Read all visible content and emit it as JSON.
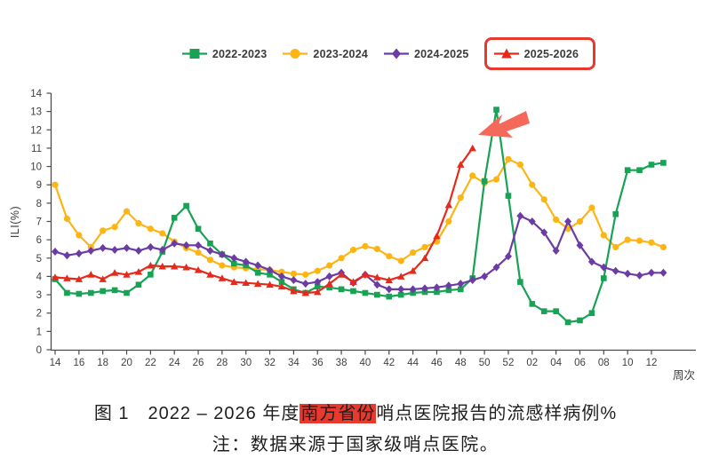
{
  "figure": {
    "caption": {
      "prefix": "图 1　2022 – 2026 年度",
      "highlight": "南方省份",
      "suffix": "哨点医院报告的流感样病例%",
      "highlight_bg": "#e8392e"
    },
    "note": "注：数据来源于国家级哨点医院。",
    "legend_highlight": {
      "item": "2025-2026",
      "box_color": "#e8392e"
    }
  },
  "chart_data": {
    "type": "line",
    "title": "",
    "xlabel": "周次",
    "ylabel": "ILI(%)",
    "ylim": [
      0,
      14
    ],
    "ytick_step": 1,
    "grid": false,
    "legend_position": "top-center",
    "xtick_every": 2,
    "categories": [
      "14",
      "15",
      "16",
      "17",
      "18",
      "19",
      "20",
      "21",
      "22",
      "23",
      "24",
      "25",
      "26",
      "27",
      "28",
      "29",
      "30",
      "31",
      "32",
      "33",
      "34",
      "35",
      "36",
      "37",
      "38",
      "39",
      "40",
      "41",
      "42",
      "43",
      "44",
      "45",
      "46",
      "47",
      "48",
      "49",
      "50",
      "51",
      "52",
      "01",
      "02",
      "03",
      "04",
      "05",
      "06",
      "07",
      "08",
      "09",
      "10",
      "11",
      "12",
      "13"
    ],
    "series": [
      {
        "name": "2022-2023",
        "color": "#17a254",
        "marker": "square",
        "values": [
          3.85,
          3.1,
          3.05,
          3.1,
          3.2,
          3.25,
          3.1,
          3.55,
          4.1,
          5.35,
          7.2,
          7.85,
          6.6,
          5.8,
          5.2,
          4.7,
          4.6,
          4.2,
          4.1,
          3.7,
          3.3,
          3.1,
          3.45,
          3.4,
          3.3,
          3.2,
          3.1,
          3.0,
          2.9,
          3.0,
          3.1,
          3.15,
          3.15,
          3.25,
          3.3,
          3.9,
          9.2,
          13.1,
          8.4,
          3.7,
          2.5,
          2.1,
          2.1,
          1.5,
          1.6,
          2.0,
          3.9,
          7.4,
          9.8,
          9.8,
          10.1,
          10.2
        ]
      },
      {
        "name": "2023-2024",
        "color": "#fcb514",
        "marker": "circle",
        "values": [
          9.0,
          7.15,
          6.25,
          5.6,
          6.5,
          6.7,
          7.55,
          6.9,
          6.6,
          6.35,
          5.9,
          5.55,
          5.3,
          4.9,
          4.6,
          4.5,
          4.45,
          4.4,
          4.35,
          4.25,
          4.15,
          4.1,
          4.3,
          4.6,
          5.0,
          5.45,
          5.65,
          5.5,
          5.1,
          4.85,
          5.3,
          5.6,
          5.9,
          7.0,
          8.3,
          9.5,
          9.1,
          9.3,
          10.4,
          10.1,
          9.0,
          8.2,
          7.1,
          6.6,
          7.0,
          7.75,
          6.25,
          5.6,
          6.0,
          5.95,
          5.85,
          5.6
        ]
      },
      {
        "name": "2024-2025",
        "color": "#6d3ba4",
        "marker": "diamond",
        "values": [
          5.35,
          5.15,
          5.25,
          5.4,
          5.55,
          5.45,
          5.55,
          5.4,
          5.6,
          5.45,
          5.8,
          5.7,
          5.7,
          5.4,
          5.2,
          5.0,
          4.8,
          4.6,
          4.35,
          4.0,
          3.8,
          3.6,
          3.7,
          4.0,
          4.2,
          3.65,
          4.1,
          3.55,
          3.3,
          3.3,
          3.3,
          3.35,
          3.4,
          3.5,
          3.6,
          3.8,
          4.0,
          4.5,
          5.1,
          7.3,
          7.0,
          6.4,
          5.4,
          7.0,
          5.7,
          4.8,
          4.5,
          4.3,
          4.15,
          4.05,
          4.2,
          4.2
        ]
      },
      {
        "name": "2025-2026",
        "color": "#e42a1c",
        "marker": "triangle",
        "highlighted_in_legend": true,
        "values": [
          3.95,
          3.9,
          3.85,
          4.1,
          3.85,
          4.2,
          4.1,
          4.25,
          4.6,
          4.55,
          4.55,
          4.5,
          4.35,
          4.1,
          3.9,
          3.7,
          3.65,
          3.6,
          3.55,
          3.45,
          3.2,
          3.1,
          3.15,
          3.6,
          4.1,
          3.7,
          4.1,
          3.95,
          3.8,
          4.0,
          4.3,
          5.0,
          6.2,
          7.9,
          10.1,
          11.0,
          null,
          null,
          null,
          null,
          null,
          null,
          null,
          null,
          null,
          null,
          null,
          null,
          null,
          null,
          null,
          null
        ]
      }
    ],
    "annotations": [
      {
        "type": "arrow",
        "color": "#f5695a",
        "target": "end of 2025-2026 line near week 49 (beside 2022-2023 peak)"
      }
    ]
  }
}
